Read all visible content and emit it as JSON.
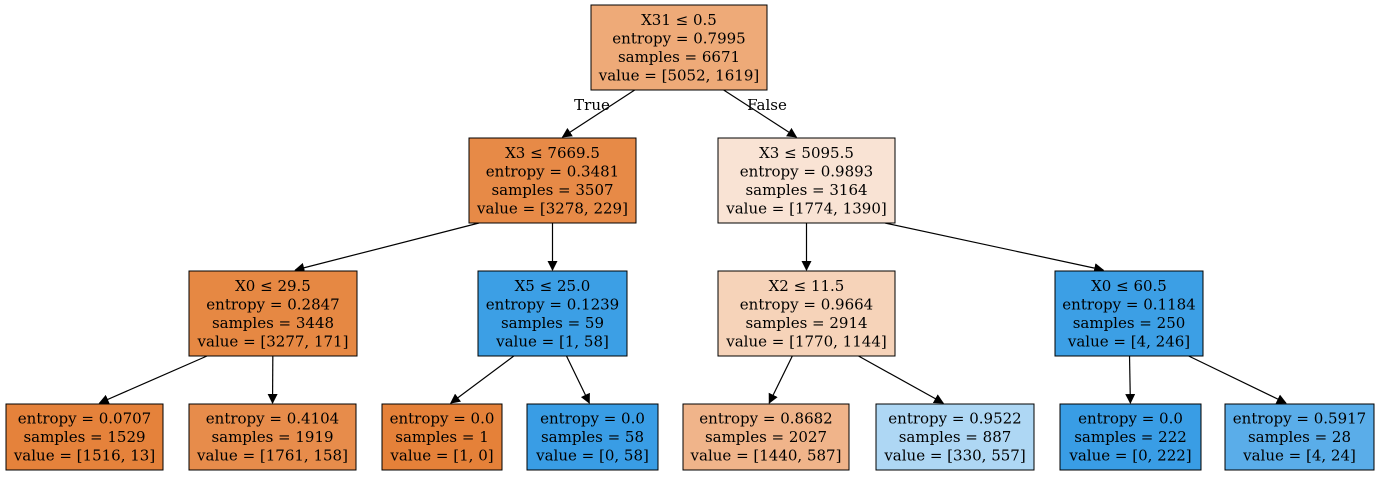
{
  "tree": {
    "nodes": [
      {
        "id": "n0",
        "lines": [
          "X31 ≤ 0.5",
          "entropy = 0.7995",
          "samples = 6671",
          "value = [5052, 1619]"
        ],
        "fill": "#eeaa78"
      },
      {
        "id": "n1",
        "lines": [
          "X3 ≤ 7669.5",
          "entropy = 0.3481",
          "samples = 3507",
          "value = [3278, 229]"
        ],
        "fill": "#e78a47"
      },
      {
        "id": "n2",
        "lines": [
          "X3 ≤ 5095.5",
          "entropy = 0.9893",
          "samples = 3164",
          "value = [1774, 1390]"
        ],
        "fill": "#f9e3d4"
      },
      {
        "id": "n3",
        "lines": [
          "X0 ≤ 29.5",
          "entropy = 0.2847",
          "samples = 3448",
          "value = [3277, 171]"
        ],
        "fill": "#e68843"
      },
      {
        "id": "n4",
        "lines": [
          "X5 ≤ 25.0",
          "entropy = 0.1239",
          "samples = 59",
          "value = [1, 58]"
        ],
        "fill": "#3c9fe5"
      },
      {
        "id": "n5",
        "lines": [
          "X2 ≤ 11.5",
          "entropy = 0.9664",
          "samples = 2914",
          "value = [1770, 1144]"
        ],
        "fill": "#f6d3b9"
      },
      {
        "id": "n6",
        "lines": [
          "X0 ≤ 60.5",
          "entropy = 0.1184",
          "samples = 250",
          "value = [4, 246]"
        ],
        "fill": "#3c9fe5"
      },
      {
        "id": "n7",
        "lines": [
          "entropy = 0.0707",
          "samples = 1529",
          "value = [1516, 13]"
        ],
        "fill": "#e5823b"
      },
      {
        "id": "n8",
        "lines": [
          "entropy = 0.4104",
          "samples = 1919",
          "value = [1761, 158]"
        ],
        "fill": "#e78c4b"
      },
      {
        "id": "n9",
        "lines": [
          "entropy = 0.0",
          "samples = 1",
          "value = [1, 0]"
        ],
        "fill": "#e58139"
      },
      {
        "id": "n10",
        "lines": [
          "entropy = 0.0",
          "samples = 58",
          "value = [0, 58]"
        ],
        "fill": "#399de5"
      },
      {
        "id": "n11",
        "lines": [
          "entropy = 0.8682",
          "samples = 2027",
          "value = [1440, 587]"
        ],
        "fill": "#f0b48a"
      },
      {
        "id": "n12",
        "lines": [
          "entropy = 0.9522",
          "samples = 887",
          "value = [330, 557]"
        ],
        "fill": "#aed7f4"
      },
      {
        "id": "n13",
        "lines": [
          "entropy = 0.0",
          "samples = 222",
          "value = [0, 222]"
        ],
        "fill": "#399de5"
      },
      {
        "id": "n14",
        "lines": [
          "entropy = 0.5917",
          "samples = 28",
          "value = [4, 24]"
        ],
        "fill": "#5aade9"
      }
    ],
    "edges": [
      {
        "from": "n0",
        "to": "n1",
        "label": "True"
      },
      {
        "from": "n0",
        "to": "n2",
        "label": "False"
      },
      {
        "from": "n1",
        "to": "n3",
        "label": ""
      },
      {
        "from": "n1",
        "to": "n4",
        "label": ""
      },
      {
        "from": "n2",
        "to": "n5",
        "label": ""
      },
      {
        "from": "n2",
        "to": "n6",
        "label": ""
      },
      {
        "from": "n3",
        "to": "n7",
        "label": ""
      },
      {
        "from": "n3",
        "to": "n8",
        "label": ""
      },
      {
        "from": "n4",
        "to": "n9",
        "label": ""
      },
      {
        "from": "n4",
        "to": "n10",
        "label": ""
      },
      {
        "from": "n5",
        "to": "n11",
        "label": ""
      },
      {
        "from": "n5",
        "to": "n12",
        "label": ""
      },
      {
        "from": "n6",
        "to": "n13",
        "label": ""
      },
      {
        "from": "n6",
        "to": "n14",
        "label": ""
      }
    ]
  }
}
